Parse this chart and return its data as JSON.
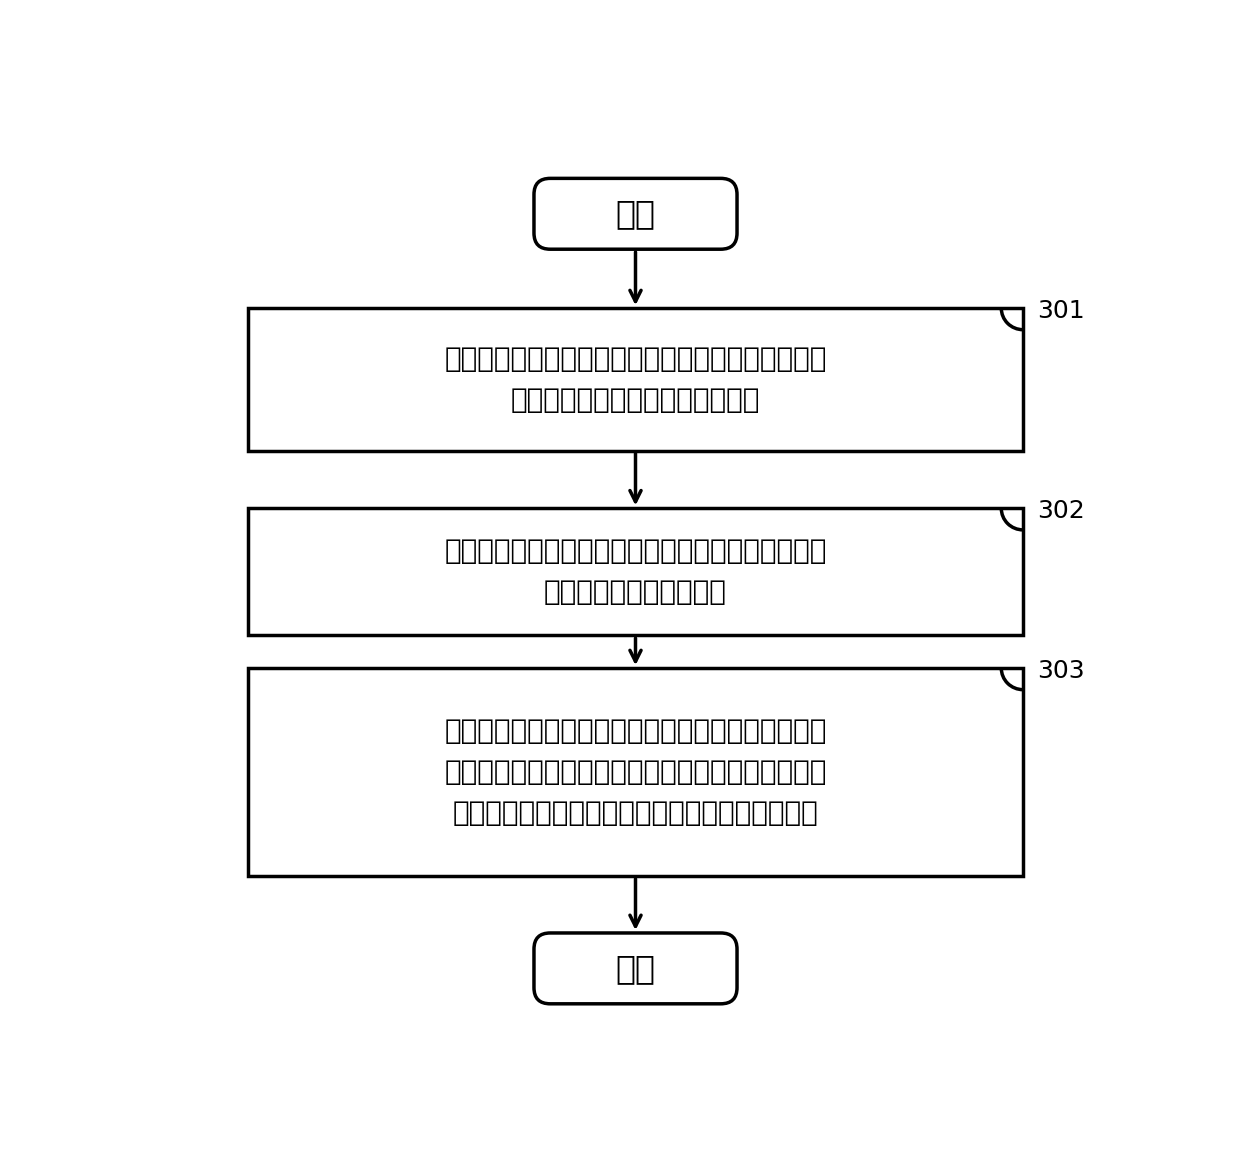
{
  "background_color": "#ffffff",
  "fig_width": 12.4,
  "fig_height": 11.72,
  "start_text": "开始",
  "end_text": "结束",
  "box1_text": "在晶体振荡器被使能后，激励信号发生器生成激励信\n号，并将激励信号输入宽带调制器",
  "box2_text": "宽带调制器将激励信号进行调制生成调制信号，并将\n调制信号输入晶体振荡器",
  "box3_text": "振荡幅度检测器检测晶体振荡器的输出信号的幅度，\n若检测到晶体振荡器的输出信号的幅度超过预设幅度\n值，则宽带调制器停止向晶体振荡器输入调制信号",
  "label301": "301",
  "label302": "302",
  "label303": "303",
  "box_border_color": "#000000",
  "box_fill_color": "#ffffff",
  "text_color": "#000000",
  "arrow_color": "#000000",
  "font_size_box": 20,
  "font_size_terminal": 24,
  "font_size_label": 18,
  "line_width": 2.5
}
